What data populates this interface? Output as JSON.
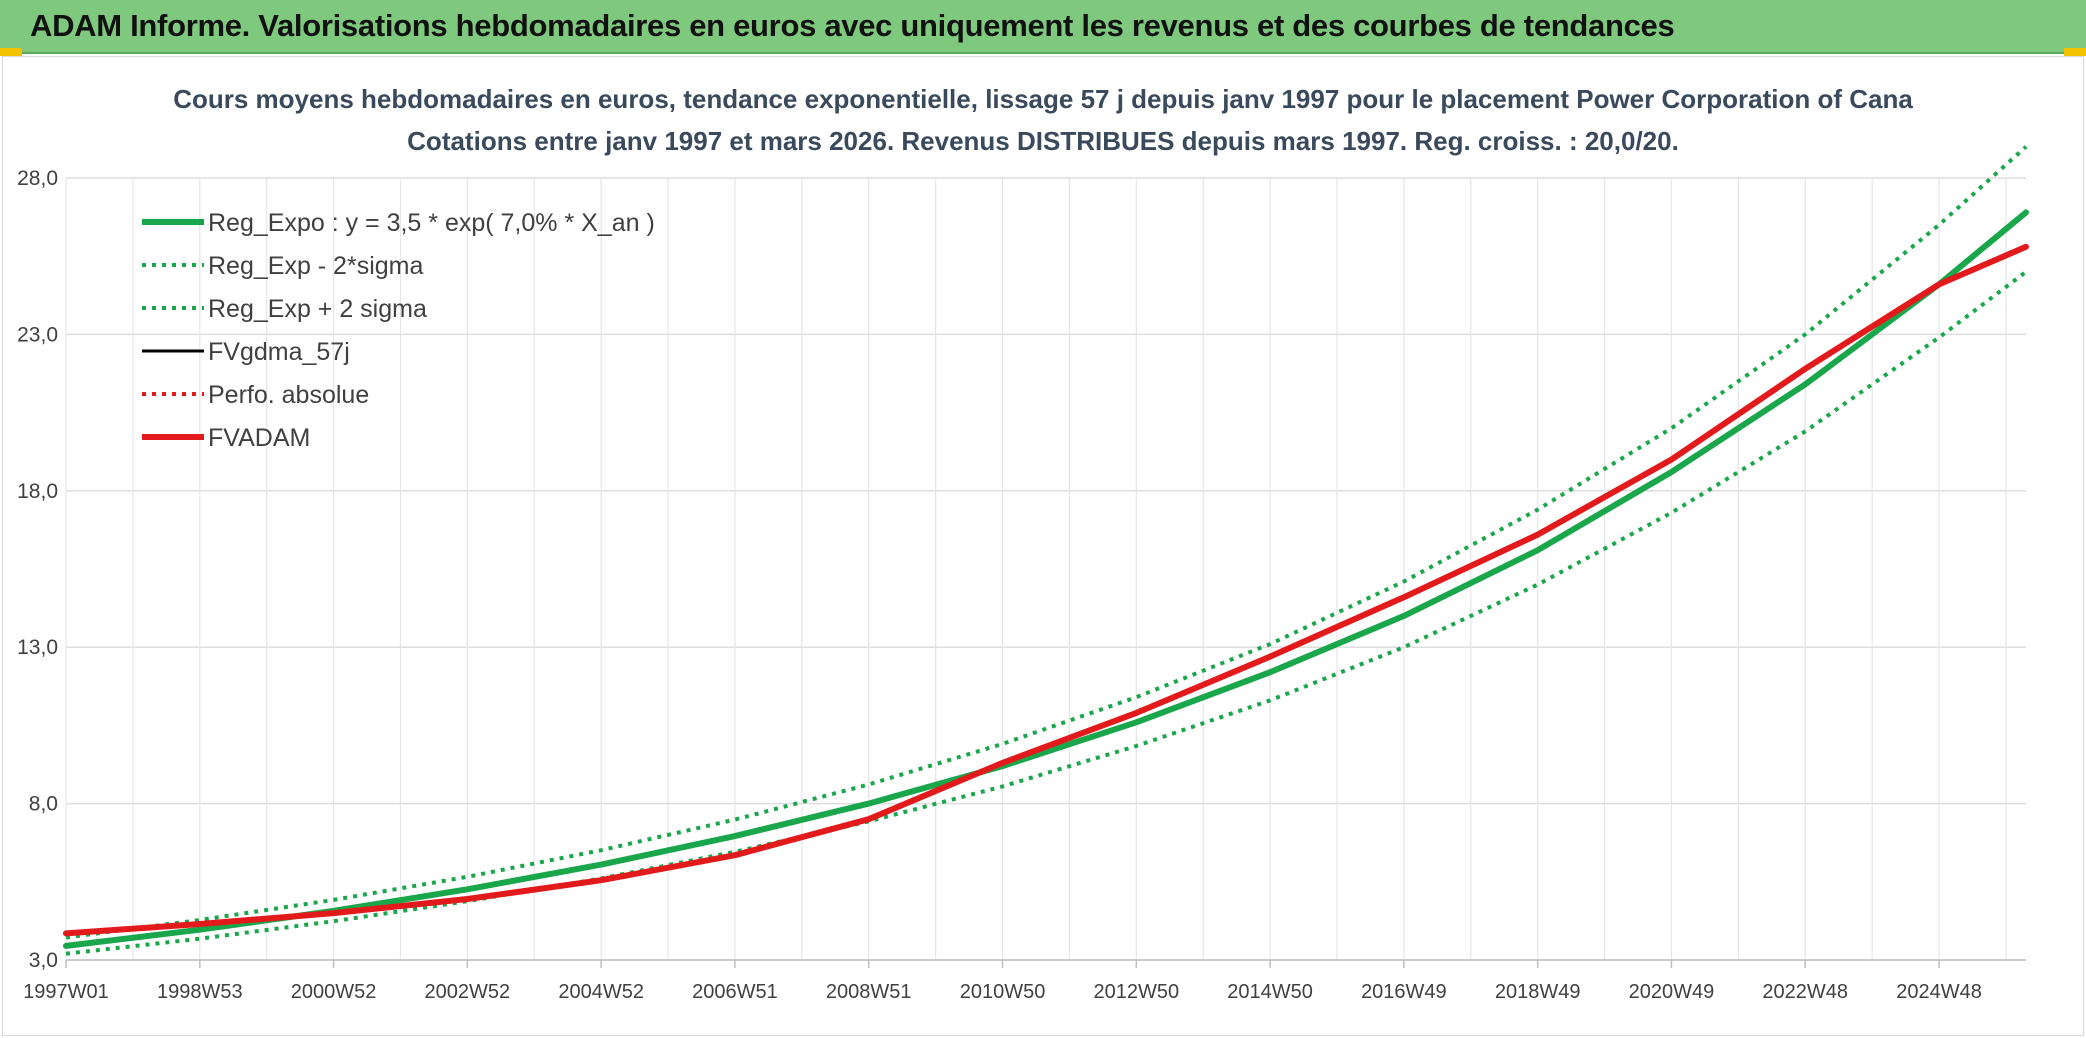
{
  "banner": {
    "title": "ADAM Informe. Valorisations hebdomadaires en euros avec uniquement les revenus et des courbes de tendances"
  },
  "chart_data": {
    "type": "line",
    "title": "Cours moyens hebdomadaires en euros, tendance exponentielle, lissage 57 j depuis janv 1997 pour le placement Power Corporation of Cana",
    "subtitle": "Cotations entre janv 1997 et mars 2026. Revenus DISTRIBUES depuis mars 1997. Reg. croiss. : 20,0/20.",
    "xlabel": "",
    "ylabel": "",
    "xlim": [
      1997.0,
      2026.3
    ],
    "ylim": [
      3.0,
      28.0
    ],
    "y_ticks": [
      "3,0",
      "8,0",
      "13,0",
      "18,0",
      "23,0",
      "28,0"
    ],
    "y_tick_values": [
      3,
      8,
      13,
      18,
      23,
      28
    ],
    "x_ticks": [
      "1997W01",
      "1998W53",
      "2000W52",
      "2002W52",
      "2004W52",
      "2006W51",
      "2008W51",
      "2010W50",
      "2012W50",
      "2014W50",
      "2016W49",
      "2018W49",
      "2020W49",
      "2022W48",
      "2024W48"
    ],
    "x_tick_values": [
      1997.0,
      1999.0,
      2001.0,
      2003.0,
      2005.0,
      2007.0,
      2009.0,
      2011.0,
      2013.0,
      2015.0,
      2017.0,
      2019.0,
      2021.0,
      2023.0,
      2025.0
    ],
    "grid": true,
    "legend_position": "top-left",
    "series": [
      {
        "name": "Reg_Expo : y = 3,5 * exp( 7,0% *  X_an )",
        "color": "#1aa64a",
        "style": "solid-thick",
        "x": [
          1997.0,
          1999.0,
          2001.0,
          2003.0,
          2005.0,
          2007.0,
          2009.0,
          2011.0,
          2013.0,
          2015.0,
          2017.0,
          2019.0,
          2021.0,
          2023.0,
          2025.0,
          2026.3
        ],
        "values": [
          3.45,
          3.97,
          4.57,
          5.26,
          6.05,
          6.96,
          8.0,
          9.2,
          10.6,
          12.2,
          14.0,
          16.1,
          18.6,
          21.4,
          24.6,
          26.9
        ]
      },
      {
        "name": "Reg_Exp - 2*sigma",
        "color": "#1aa64a",
        "style": "dotted",
        "x": [
          1997.0,
          1999.0,
          2001.0,
          2003.0,
          2005.0,
          2007.0,
          2009.0,
          2011.0,
          2013.0,
          2015.0,
          2017.0,
          2019.0,
          2021.0,
          2023.0,
          2025.0,
          2026.3
        ],
        "values": [
          3.2,
          3.68,
          4.24,
          4.88,
          5.61,
          6.46,
          7.43,
          8.55,
          9.84,
          11.3,
          13.0,
          15.0,
          17.3,
          19.9,
          22.9,
          25.0
        ]
      },
      {
        "name": "Reg_Exp + 2 sigma",
        "color": "#1aa64a",
        "style": "dotted",
        "x": [
          1997.0,
          1999.0,
          2001.0,
          2003.0,
          2005.0,
          2007.0,
          2009.0,
          2011.0,
          2013.0,
          2015.0,
          2017.0,
          2019.0,
          2021.0,
          2023.0,
          2025.0,
          2026.3
        ],
        "values": [
          3.72,
          4.28,
          4.92,
          5.66,
          6.51,
          7.49,
          8.61,
          9.91,
          11.4,
          13.1,
          15.1,
          17.4,
          20.0,
          23.0,
          26.5,
          29.0
        ]
      },
      {
        "name": "FVgdma_57j",
        "color": "#000000",
        "style": "solid",
        "x": [],
        "values": []
      },
      {
        "name": "Perfo. absolue",
        "color": "#e31a1c",
        "style": "dotted",
        "x": [],
        "values": []
      },
      {
        "name": "FVADAM",
        "color": "#e31a1c",
        "style": "solid-thick",
        "x": [
          1997.0,
          1999.0,
          2001.0,
          2003.0,
          2005.0,
          2007.0,
          2009.0,
          2011.0,
          2013.0,
          2015.0,
          2017.0,
          2019.0,
          2021.0,
          2023.0,
          2025.0,
          2026.3
        ],
        "values": [
          3.85,
          4.15,
          4.5,
          4.95,
          5.55,
          6.35,
          7.5,
          9.3,
          10.9,
          12.7,
          14.6,
          16.6,
          19.0,
          21.9,
          24.6,
          25.8
        ]
      }
    ]
  }
}
